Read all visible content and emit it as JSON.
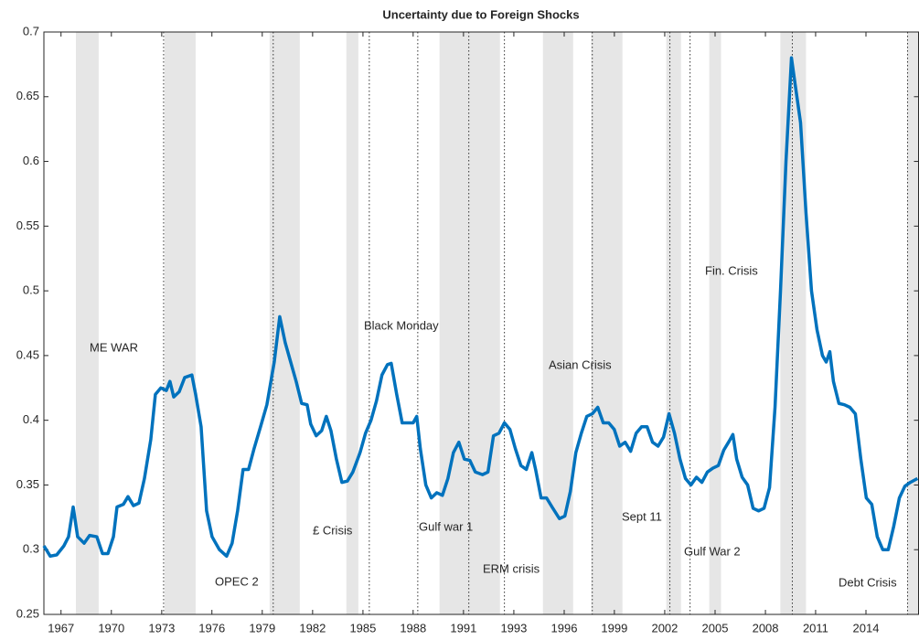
{
  "chart_data": {
    "type": "line",
    "title": "Uncertainty due to Foreign Shocks",
    "color": "#0072bd",
    "band_color": "#e6e6e6",
    "x": [
      1966.0,
      1966.37,
      1966.75,
      1967.17,
      1967.44,
      1967.71,
      1967.97,
      1968.35,
      1968.67,
      1969.09,
      1969.42,
      1969.74,
      1970.06,
      1970.27,
      1970.64,
      1970.91,
      1971.23,
      1971.55,
      1971.87,
      1972.24,
      1972.51,
      1972.83,
      1973.15,
      1973.36,
      1973.58,
      1973.9,
      1974.22,
      1974.64,
      1974.86,
      1975.18,
      1975.5,
      1975.82,
      1976.25,
      1976.67,
      1976.99,
      1977.31,
      1977.63,
      1977.95,
      1978.27,
      1978.65,
      1979.02,
      1979.45,
      1979.77,
      1980.09,
      1980.41,
      1980.73,
      1981.05,
      1981.37,
      1981.58,
      1981.9,
      1982.22,
      1982.49,
      1982.76,
      1983.08,
      1983.4,
      1983.72,
      1984.04,
      1984.46,
      1984.78,
      1985.1,
      1985.42,
      1985.74,
      1986.06,
      1986.28,
      1986.6,
      1986.92,
      1987.24,
      1987.56,
      1987.77,
      1987.98,
      1988.3,
      1988.62,
      1988.94,
      1989.27,
      1989.59,
      1989.91,
      1990.23,
      1990.55,
      1990.87,
      1991.19,
      1991.61,
      1991.93,
      1992.25,
      1992.57,
      1992.89,
      1993.21,
      1993.53,
      1993.85,
      1994.17,
      1994.49,
      1994.71,
      1995.03,
      1995.35,
      1995.67,
      1996.1,
      1996.42,
      1996.74,
      1997.06,
      1997.38,
      1997.7,
      1998.02,
      1998.34,
      1998.66,
      1998.98,
      1999.3,
      1999.62,
      1999.94,
      2000.26,
      2000.58,
      2000.9,
      2001.22,
      2001.54,
      2001.86,
      2002.18,
      2002.5,
      2002.82,
      2003.14,
      2003.46,
      2003.78,
      2004.1,
      2004.42,
      2004.74,
      2005.06,
      2005.38,
      2005.7,
      2006.02,
      2006.23,
      2006.45,
      2006.77,
      2007.09,
      2007.41,
      2007.73,
      2008.05,
      2008.37,
      2008.69,
      2009.01,
      2009.33,
      2009.65,
      2009.86,
      2010.18,
      2010.5,
      2010.82,
      2011.14,
      2011.46,
      2011.68,
      2011.89,
      2012.1,
      2012.42,
      2012.74,
      2013.06,
      2013.38,
      2013.7,
      2014.02,
      2014.34,
      2014.66,
      2014.98,
      2015.3,
      2015.62,
      2015.95,
      2016.27,
      2016.59,
      2017.01
    ],
    "values": [
      0.303,
      0.295,
      0.296,
      0.303,
      0.31,
      0.333,
      0.31,
      0.305,
      0.311,
      0.31,
      0.297,
      0.297,
      0.31,
      0.333,
      0.335,
      0.341,
      0.334,
      0.336,
      0.355,
      0.385,
      0.42,
      0.425,
      0.423,
      0.43,
      0.418,
      0.422,
      0.433,
      0.435,
      0.42,
      0.395,
      0.33,
      0.31,
      0.3,
      0.295,
      0.305,
      0.33,
      0.362,
      0.362,
      0.378,
      0.395,
      0.412,
      0.445,
      0.48,
      0.46,
      0.445,
      0.43,
      0.413,
      0.412,
      0.397,
      0.388,
      0.392,
      0.403,
      0.392,
      0.37,
      0.352,
      0.353,
      0.36,
      0.375,
      0.39,
      0.4,
      0.415,
      0.435,
      0.443,
      0.444,
      0.42,
      0.398,
      0.398,
      0.398,
      0.403,
      0.378,
      0.35,
      0.34,
      0.344,
      0.342,
      0.355,
      0.375,
      0.383,
      0.37,
      0.369,
      0.36,
      0.358,
      0.36,
      0.388,
      0.39,
      0.398,
      0.393,
      0.378,
      0.365,
      0.362,
      0.375,
      0.362,
      0.34,
      0.34,
      0.333,
      0.324,
      0.326,
      0.345,
      0.375,
      0.39,
      0.403,
      0.405,
      0.41,
      0.398,
      0.398,
      0.393,
      0.38,
      0.383,
      0.376,
      0.39,
      0.395,
      0.395,
      0.383,
      0.38,
      0.387,
      0.405,
      0.39,
      0.37,
      0.355,
      0.35,
      0.356,
      0.352,
      0.36,
      0.363,
      0.365,
      0.377,
      0.384,
      0.389,
      0.37,
      0.356,
      0.35,
      0.332,
      0.33,
      0.332,
      0.348,
      0.41,
      0.5,
      0.6,
      0.68,
      0.66,
      0.63,
      0.56,
      0.5,
      0.47,
      0.45,
      0.445,
      0.453,
      0.43,
      0.413,
      0.412,
      0.41,
      0.405,
      0.37,
      0.34,
      0.335,
      0.31,
      0.3,
      0.3,
      0.318,
      0.34,
      0.349,
      0.352,
      0.355
    ],
    "shaded_periods": [
      [
        1967.87,
        1969.2
      ],
      [
        1973.04,
        1974.86
      ],
      [
        1979.18,
        1980.94
      ],
      [
        1983.66,
        1984.36
      ],
      [
        1989.1,
        1992.63
      ],
      [
        1995.14,
        1996.9
      ],
      [
        1997.96,
        1999.78
      ],
      [
        2002.34,
        2003.2
      ],
      [
        2004.85,
        2005.54
      ],
      [
        2009.0,
        2010.5
      ],
      [
        2016.4,
        2017.07
      ]
    ],
    "event_lines": [
      1972.99,
      1979.39,
      1985.0,
      1987.83,
      1990.81,
      1992.89,
      1998.02,
      2002.55,
      2003.73,
      2009.7,
      2016.43
    ],
    "annotations": [
      "ME WAR",
      "OPEC 2",
      "£ Crisis",
      "Black Monday",
      "Gulf war 1",
      "ERM crisis",
      "Asian Crisis",
      "Sept 11",
      "Gulf War 2",
      "Fin. Crisis",
      "Debt Crisis"
    ],
    "xlim": [
      1966,
      2017.07
    ],
    "xticks": [
      1967,
      {
        "value": 1969.94,
        "label": "1970"
      },
      {
        "value": 1972.88,
        "label": "1973"
      },
      {
        "value": 1975.81,
        "label": "1976"
      },
      {
        "value": 1978.75,
        "label": "1979"
      },
      {
        "value": 1981.69,
        "label": "1982"
      },
      {
        "value": 1984.63,
        "label": "1985"
      },
      {
        "value": 1987.56,
        "label": "1988"
      },
      {
        "value": 1990.5,
        "label": "1991"
      },
      {
        "value": 1993.44,
        "label": "1993"
      },
      {
        "value": 1996.38,
        "label": "1996"
      },
      {
        "value": 1999.31,
        "label": "1999"
      },
      {
        "value": 2002.25,
        "label": "2002"
      },
      {
        "value": 2005.19,
        "label": "2005"
      },
      {
        "value": 2008.13,
        "label": "2008"
      },
      {
        "value": 2011.06,
        "label": "2011"
      },
      2014
    ],
    "ylim": [
      0.25,
      0.7
    ],
    "yticks": [
      0.25,
      0.3,
      0.35,
      0.4,
      0.45,
      0.5,
      0.55,
      0.6,
      0.65,
      0.7
    ]
  }
}
